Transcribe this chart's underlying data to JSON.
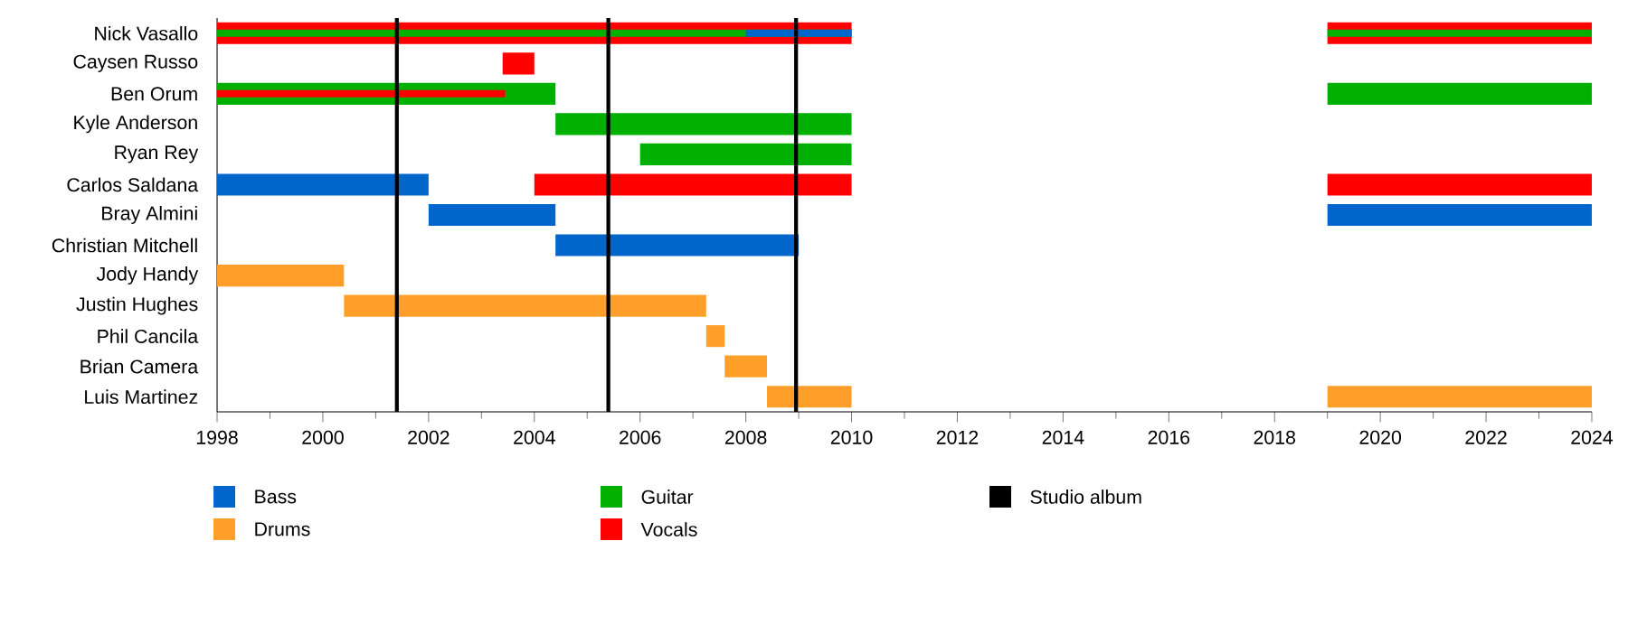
{
  "chart_data": {
    "type": "bar",
    "orientation": "horizontal",
    "categories": [
      "Nick Vasallo",
      "Caysen Russo",
      "Ben Orum",
      "Kyle Anderson",
      "Ryan Rey",
      "Carlos Saldana",
      "Bray Almini",
      "Christian Mitchell",
      "Jody Handy",
      "Justin Hughes",
      "Phil Cancila",
      "Brian Camera",
      "Luis Martinez"
    ],
    "xlim": [
      1998,
      2024
    ],
    "xticks": [
      1998,
      2000,
      2002,
      2004,
      2006,
      2008,
      2010,
      2012,
      2014,
      2016,
      2018,
      2020,
      2022,
      2024
    ],
    "series": [
      {
        "name": "Bass",
        "color": "#0066cc",
        "base": [
          2008,
          null,
          null,
          null,
          null,
          1998,
          2002,
          2004.4,
          null,
          null,
          null,
          null,
          null
        ],
        "values": [
          2,
          null,
          null,
          null,
          null,
          4,
          2.4,
          4.6,
          null,
          null,
          null,
          null,
          null
        ]
      },
      {
        "name": "Drums",
        "color": "#ff9f2a",
        "base": [
          null,
          null,
          null,
          null,
          null,
          null,
          null,
          null,
          1998,
          2000.4,
          2007.25,
          2007.6,
          2008.4
        ],
        "values": [
          null,
          null,
          null,
          null,
          null,
          null,
          null,
          null,
          2.4,
          6.85,
          0.35,
          0.8,
          1.6
        ]
      },
      {
        "name": "Guitar",
        "color": "#00b000",
        "base": [
          1998,
          null,
          1998,
          2004.4,
          2006,
          null,
          null,
          null,
          null,
          null,
          null,
          null,
          null
        ],
        "values": [
          12,
          null,
          6.4,
          5.6,
          4,
          null,
          null,
          null,
          null,
          null,
          null,
          null,
          null
        ]
      },
      {
        "name": "Vocals",
        "color": "#ff0000",
        "base": [
          1998,
          2003.4,
          1998,
          null,
          null,
          2004,
          null,
          null,
          null,
          null,
          null,
          null,
          null
        ],
        "values": [
          12,
          0.6,
          5.45,
          null,
          null,
          6,
          null,
          null,
          null,
          null,
          null,
          null,
          null
        ]
      },
      {
        "color": "#0066cc",
        "base": [
          null,
          null,
          null,
          null,
          null,
          null,
          2019,
          null,
          null,
          null,
          null,
          null,
          null
        ],
        "values": [
          null,
          null,
          null,
          null,
          null,
          null,
          5,
          null,
          null,
          null,
          null,
          null,
          null
        ]
      },
      {
        "color": "#ff9f2a",
        "base": [
          null,
          null,
          null,
          null,
          null,
          null,
          null,
          null,
          null,
          null,
          null,
          null,
          2019
        ],
        "values": [
          null,
          null,
          null,
          null,
          null,
          null,
          null,
          null,
          null,
          null,
          null,
          null,
          5
        ]
      },
      {
        "color": "#00b000",
        "base": [
          2019,
          null,
          2019,
          null,
          null,
          null,
          null,
          null,
          null,
          null,
          null,
          null,
          null
        ],
        "values": [
          5,
          null,
          5,
          null,
          null,
          null,
          null,
          null,
          null,
          null,
          null,
          null,
          null
        ]
      },
      {
        "color": "#ff0000",
        "base": [
          2019,
          null,
          null,
          null,
          null,
          2019,
          null,
          null,
          null,
          null,
          null,
          null,
          null
        ],
        "values": [
          5,
          null,
          null,
          null,
          null,
          5,
          null,
          null,
          null,
          null,
          null,
          null,
          null
        ]
      }
    ],
    "ref_lines": [
      {
        "axis": "x",
        "value": 2001.4,
        "label": "Studio album",
        "color": "#000000"
      },
      {
        "axis": "x",
        "value": 2005.4,
        "color": "#000000"
      },
      {
        "axis": "x",
        "value": 2008.95,
        "color": "#000000"
      }
    ],
    "legend": "bottom"
  }
}
